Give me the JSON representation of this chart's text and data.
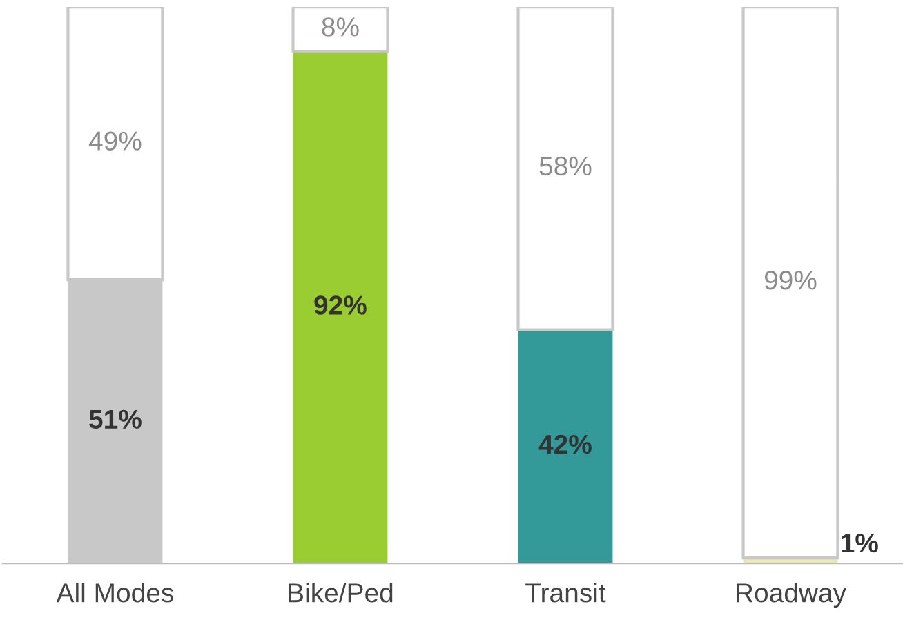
{
  "chart_data": {
    "type": "bar",
    "stacked": true,
    "categories": [
      "All Modes",
      "Bike/Ped",
      "Transit",
      "Roadway"
    ],
    "ylim": [
      0,
      100
    ],
    "legend": false,
    "tick_labels": "x",
    "data_labels": true,
    "series": [
      {
        "colors": [
          "#c8c8c8",
          "#9acd32",
          "#339999",
          "#e8e8b0"
        ],
        "values": [
          51,
          92,
          42,
          1
        ],
        "value_labels": [
          "51%",
          "92%",
          "42%",
          "1%"
        ]
      },
      {
        "color": "#ffffff",
        "values": [
          49,
          8,
          58,
          99
        ],
        "value_labels": [
          "49%",
          "8%",
          "58%",
          "99%"
        ]
      }
    ]
  }
}
